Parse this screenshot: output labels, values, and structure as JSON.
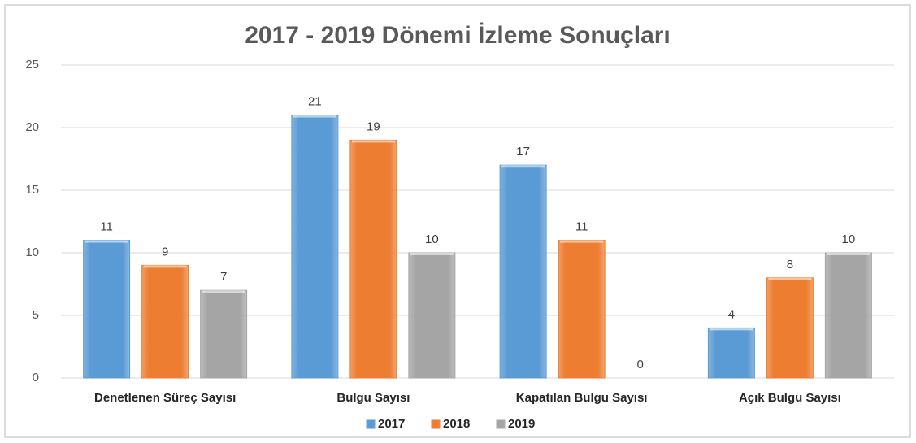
{
  "chart_data": {
    "type": "bar",
    "title": "2017 - 2019 Dönemi İzleme Sonuçları",
    "categories": [
      "Denetlenen Süreç Sayısı",
      "Bulgu Sayısı",
      "Kapatılan Bulgu Sayısı",
      "Açık Bulgu Sayısı"
    ],
    "series": [
      {
        "name": "2017",
        "color": "#5b9bd5",
        "values": [
          11,
          21,
          17,
          4
        ]
      },
      {
        "name": "2018",
        "color": "#ed7d31",
        "values": [
          9,
          19,
          11,
          8
        ]
      },
      {
        "name": "2019",
        "color": "#a5a5a5",
        "values": [
          7,
          10,
          0,
          10
        ]
      }
    ],
    "ylim": [
      0,
      25
    ],
    "yticks": [
      0,
      5,
      10,
      15,
      20,
      25
    ],
    "grid": true,
    "legend": "bottom"
  }
}
